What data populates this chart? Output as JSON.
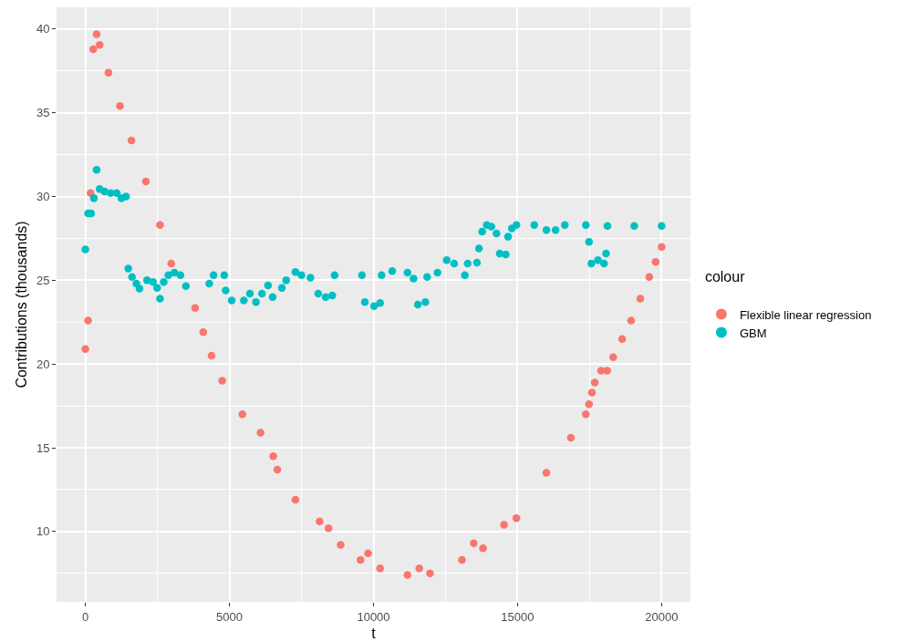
{
  "chart_data": {
    "type": "scatter",
    "xlabel": "t",
    "ylabel": "Contributions (thousands)",
    "legend_title": "colour",
    "legend": "right",
    "grid": true,
    "marker": "circle",
    "xlim": [
      -1000,
      21000
    ],
    "ylim": [
      5.8,
      41.3
    ],
    "xticks": [
      0,
      {
        "value": 2500,
        "label": null
      },
      5000,
      {
        "value": 7500,
        "label": null
      },
      10000,
      {
        "value": 12500,
        "label": null
      },
      15000,
      {
        "value": 17500,
        "label": null
      },
      20000
    ],
    "yticks": [
      {
        "value": 7.5,
        "label": null
      },
      10,
      {
        "value": 12.5,
        "label": null
      },
      15,
      {
        "value": 17.5,
        "label": null
      },
      20,
      {
        "value": 22.5,
        "label": null
      },
      25,
      {
        "value": 27.5,
        "label": null
      },
      30,
      {
        "value": 32.5,
        "label": null
      },
      35,
      {
        "value": 37.5,
        "label": null
      },
      40
    ],
    "series": [
      {
        "name": "Flexible linear regression",
        "color": "#f8766d",
        "x": [
          0,
          95,
          180,
          275,
          390,
          495,
          800,
          1200,
          1600,
          2100,
          2590,
          2980,
          3810,
          4090,
          4380,
          4750,
          5450,
          6080,
          6520,
          6660,
          7290,
          8130,
          8440,
          8860,
          9550,
          9810,
          10230,
          11180,
          11590,
          11960,
          13070,
          13480,
          13800,
          14530,
          14960,
          16000,
          16850,
          17370,
          17480,
          17580,
          17680,
          17900,
          18110,
          18320,
          18630,
          18940,
          19260,
          19570,
          19790,
          20000
        ],
        "values": [
          20.9,
          22.6,
          30.2,
          38.8,
          39.7,
          39.05,
          37.4,
          35.4,
          33.35,
          30.9,
          28.3,
          26.0,
          23.35,
          21.9,
          20.5,
          19.0,
          17.0,
          15.9,
          14.5,
          13.7,
          11.9,
          10.6,
          10.2,
          9.2,
          8.3,
          8.7,
          7.8,
          7.4,
          7.8,
          7.5,
          8.3,
          9.3,
          9.0,
          10.4,
          10.8,
          13.5,
          15.6,
          17.0,
          17.6,
          18.3,
          18.9,
          19.6,
          19.6,
          20.4,
          21.5,
          22.6,
          23.9,
          25.2,
          26.1,
          27.0
        ]
      },
      {
        "name": "GBM",
        "color": "#00bfc4",
        "x": [
          0,
          95,
          200,
          295,
          390,
          495,
          670,
          880,
          1090,
          1250,
          1410,
          1490,
          1620,
          1770,
          1880,
          2140,
          2350,
          2490,
          2590,
          2720,
          2880,
          3090,
          3300,
          3490,
          4300,
          4450,
          4820,
          4870,
          5080,
          5500,
          5710,
          5920,
          6130,
          6340,
          6500,
          6820,
          6970,
          7290,
          7500,
          7810,
          8080,
          8340,
          8570,
          8650,
          9600,
          9700,
          10020,
          10230,
          10280,
          10650,
          11180,
          11390,
          11540,
          11800,
          11860,
          12220,
          12540,
          12800,
          13170,
          13270,
          13590,
          13660,
          13770,
          13930,
          14090,
          14270,
          14380,
          14590,
          14670,
          14800,
          14960,
          15580,
          16000,
          16320,
          16640,
          17370,
          17480,
          17560,
          17790,
          18000,
          18070,
          18120,
          19050,
          20000
        ],
        "values": [
          26.85,
          29.0,
          29.0,
          29.9,
          31.6,
          30.45,
          30.3,
          30.2,
          30.2,
          29.9,
          30.0,
          25.7,
          25.2,
          24.8,
          24.5,
          25.0,
          24.9,
          24.55,
          23.9,
          24.9,
          25.3,
          25.45,
          25.3,
          24.65,
          24.8,
          25.3,
          25.3,
          24.4,
          23.8,
          23.8,
          24.2,
          23.7,
          24.2,
          24.7,
          24.0,
          24.55,
          25.0,
          25.5,
          25.3,
          25.15,
          24.2,
          24.0,
          24.1,
          25.3,
          25.3,
          23.7,
          23.45,
          23.65,
          25.3,
          25.55,
          25.45,
          25.1,
          23.55,
          23.7,
          25.2,
          25.45,
          26.2,
          26.0,
          25.3,
          26.0,
          26.05,
          26.9,
          27.9,
          28.3,
          28.2,
          27.8,
          26.6,
          26.55,
          27.6,
          28.1,
          28.3,
          28.3,
          28.0,
          28.0,
          28.3,
          28.3,
          27.3,
          26.0,
          26.2,
          26.0,
          26.6,
          28.25,
          28.25,
          28.25
        ]
      }
    ]
  }
}
